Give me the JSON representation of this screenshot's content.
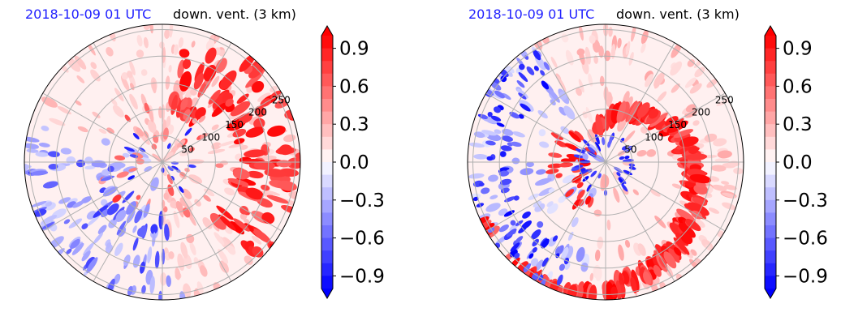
{
  "colors": {
    "positive": "#ff0000",
    "negative": "#0000ff",
    "title_date": "#1f1fff",
    "grid": "#b0b0b0"
  },
  "chart_data": [
    {
      "type": "heatmap",
      "projection": "polar",
      "title_left": "2018-10-09 01 UTC",
      "title_right": "down. vent. (3 km)",
      "radial_ticks": [
        "50",
        "100",
        "150",
        "200",
        "250"
      ],
      "radial_values": [
        50,
        100,
        150,
        200,
        250
      ],
      "colorbar": {
        "ticks": [
          "0.9",
          "0.6",
          "0.3",
          "0.0",
          "−0.3",
          "−0.6",
          "−0.9"
        ],
        "values": [
          0.9,
          0.6,
          0.3,
          0.0,
          -0.3,
          -0.6,
          -0.9
        ],
        "range": [
          -1.0,
          1.0
        ],
        "colormap": "bwr",
        "extend": "both"
      },
      "pattern": "positive arc from north to east and southeast; mostly weak values elsewhere; scattered negative patches in southwest and south"
    },
    {
      "type": "heatmap",
      "projection": "polar",
      "title_left": "2018-10-09 01 UTC",
      "title_right": "down. vent. (3 km)",
      "radial_ticks": [
        "50",
        "100",
        "150",
        "200",
        "250"
      ],
      "radial_values": [
        50,
        100,
        150,
        200,
        250
      ],
      "colorbar": {
        "ticks": [
          "0.9",
          "0.6",
          "0.3",
          "0.0",
          "−0.3",
          "−0.6",
          "−0.9"
        ],
        "values": [
          0.9,
          0.6,
          0.3,
          0.0,
          -0.3,
          -0.6,
          -0.9
        ],
        "range": [
          -1.0,
          1.0
        ],
        "colormap": "bwr",
        "extend": "both"
      },
      "pattern": "strong positive spiral bands from north through east to southeast; negative ring near center and negative patches along western edge"
    }
  ]
}
